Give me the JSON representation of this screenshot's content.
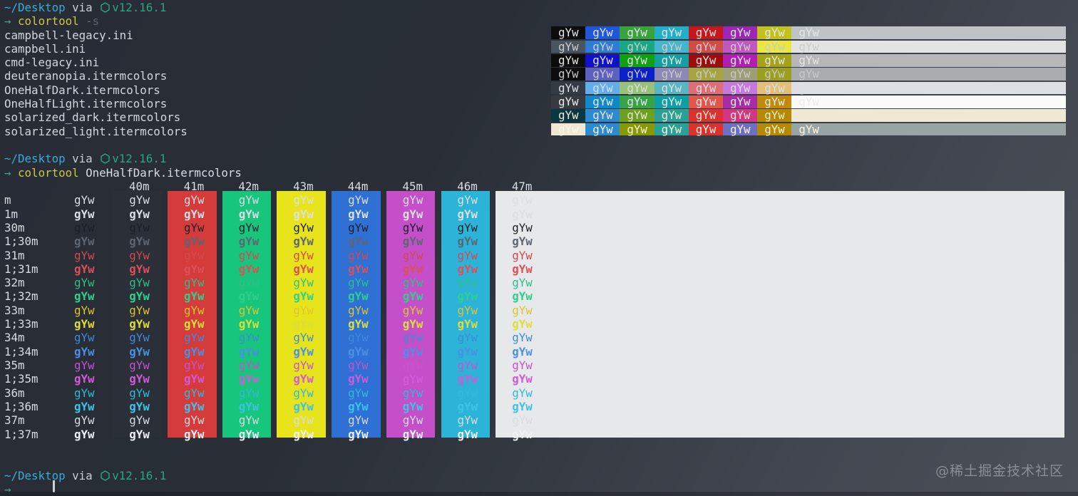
{
  "prompt": {
    "path": "~/Desktop",
    "via": "via",
    "version": "v12.16.1",
    "arrow": "→"
  },
  "cmd_list": {
    "name": "colortool",
    "flag": "-s"
  },
  "cmd_apply": {
    "name": "colortool",
    "arg": "OneHalfDark.itermcolors"
  },
  "files": [
    "campbell-legacy.ini",
    "campbell.ini",
    "cmd-legacy.ini",
    "deuteranopia.itermcolors",
    "OneHalfDark.itermcolors",
    "OneHalfLight.itermcolors",
    "solarized_dark.itermcolors",
    "solarized_light.itermcolors"
  ],
  "swatch_text": "gYw",
  "scheme_grid": {
    "rows": [
      {
        "scheme": "campbell-legacy",
        "fg": "#e4e6e9",
        "cells": [
          "#0c0c0c",
          "#1e56dd",
          "#38a33a",
          "#23aec8",
          "#c8161d",
          "#9d27b5",
          "#c3c11c"
        ],
        "bar": "#bfc2c7"
      },
      {
        "scheme": "campbell",
        "fg": "#cccccc",
        "cells": [
          "#495560",
          "#2e7cd6",
          "#17a884",
          "#45b5ce",
          "#d24b45",
          "#c157c1",
          "#e8e83e"
        ],
        "bar": "#e3e3e3"
      },
      {
        "scheme": "cmd-legacy",
        "fg": "#e6e6e6",
        "cells": [
          "#0c0c0c",
          "#1111cc",
          "#10a112",
          "#169f9f",
          "#9e0d0d",
          "#b01fb2",
          "#a3a31a"
        ],
        "bar": "#b7b7b7"
      },
      {
        "scheme": "deuteranopia",
        "fg": "#c8c8c8",
        "cells": [
          "#0c0c0c",
          "#5c61c0",
          "#0a20cc",
          "#8d88b4",
          "#a5a43e",
          "#9f9d76",
          "#9c9e1e"
        ],
        "bar": "#a9acaf"
      },
      {
        "scheme": "OneHalfDark",
        "fg": "#dcdfe4",
        "cells": [
          "#353b45",
          "#61aeee",
          "#97c279",
          "#57b6c2",
          "#e06c75",
          "#c678dd",
          "#e4bf7a"
        ],
        "bar": "#dcdfe4"
      },
      {
        "scheme": "OneHalfLight",
        "fg": "#ececec",
        "cells": [
          "#383a42",
          "#0f89c9",
          "#37a348",
          "#0e9fa5",
          "#e1564a",
          "#a82ca6",
          "#c08a0a"
        ],
        "bar": "#fafafa"
      },
      {
        "scheme": "solarized_dark",
        "fg": "#eee8d5",
        "cells": [
          "#0a3842",
          "#2c8ad2",
          "#6ba021",
          "#2aa198",
          "#dc322f",
          "#d33682",
          "#b58900"
        ],
        "bar": "#eee8d5"
      },
      {
        "scheme": "solarized_light",
        "fg": "#fdf6e3",
        "cells": [
          "#eee8d5",
          "#2c8ad2",
          "#859900",
          "#2aa198",
          "#dc322f",
          "#6c71c4",
          "#b58900"
        ],
        "bar": "#98a5a4"
      }
    ]
  },
  "ansi_table": {
    "columns": [
      {
        "header": "",
        "bg": null
      },
      {
        "header": "40m",
        "bg": "#2a2f38"
      },
      {
        "header": "41m",
        "bg": "#d63b3b"
      },
      {
        "header": "42m",
        "bg": "#17c57c"
      },
      {
        "header": "43m",
        "bg": "#e8e41c"
      },
      {
        "header": "44m",
        "bg": "#2e70d4"
      },
      {
        "header": "45m",
        "bg": "#c44fc9"
      },
      {
        "header": "46m",
        "bg": "#2cb3d8"
      },
      {
        "header": "47m",
        "bg": "#e7e8ea",
        "wide": true
      }
    ],
    "rows": [
      {
        "label": "m",
        "fg": "#dcdfe4",
        "bold": false
      },
      {
        "label": "1m",
        "fg": "#dcdfe4",
        "bold": true
      },
      {
        "label": "30m",
        "fg": "#1b1f27",
        "bold": false
      },
      {
        "label": "1;30m",
        "fg": "#5d6673",
        "bold": true
      },
      {
        "label": "31m",
        "fg": "#d4494f",
        "bold": false
      },
      {
        "label": "1;31m",
        "fg": "#de4f56",
        "bold": true
      },
      {
        "label": "32m",
        "fg": "#2fbf88",
        "bold": false
      },
      {
        "label": "1;32m",
        "fg": "#2fd08e",
        "bold": true
      },
      {
        "label": "33m",
        "fg": "#ddc52e",
        "bold": false
      },
      {
        "label": "1;33m",
        "fg": "#dede3a",
        "bold": true
      },
      {
        "label": "34m",
        "fg": "#3d8bdb",
        "bold": false
      },
      {
        "label": "1;34m",
        "fg": "#4a90e4",
        "bold": true
      },
      {
        "label": "35m",
        "fg": "#c653cf",
        "bold": false
      },
      {
        "label": "1;35m",
        "fg": "#d05ad8",
        "bold": true
      },
      {
        "label": "36m",
        "fg": "#2fb9dd",
        "bold": false
      },
      {
        "label": "1;36m",
        "fg": "#3cc3e8",
        "bold": true
      },
      {
        "label": "37m",
        "fg": "#d8dce2",
        "bold": false
      },
      {
        "label": "1;37m",
        "fg": "#eef1f5",
        "bold": true
      }
    ]
  },
  "watermark": "@稀土掘金技术社区",
  "colors": {
    "terminal_bg_dark": "#292e37",
    "terminal_bg_light": "#4c5058",
    "prompt_path": "#38acd8",
    "prompt_node_green": "#2aa77f",
    "prompt_arrow": "#3aa98c",
    "command_yellow": "#cdc544",
    "flag_gray": "#5a6370",
    "default_fg": "#dcdfe4"
  }
}
